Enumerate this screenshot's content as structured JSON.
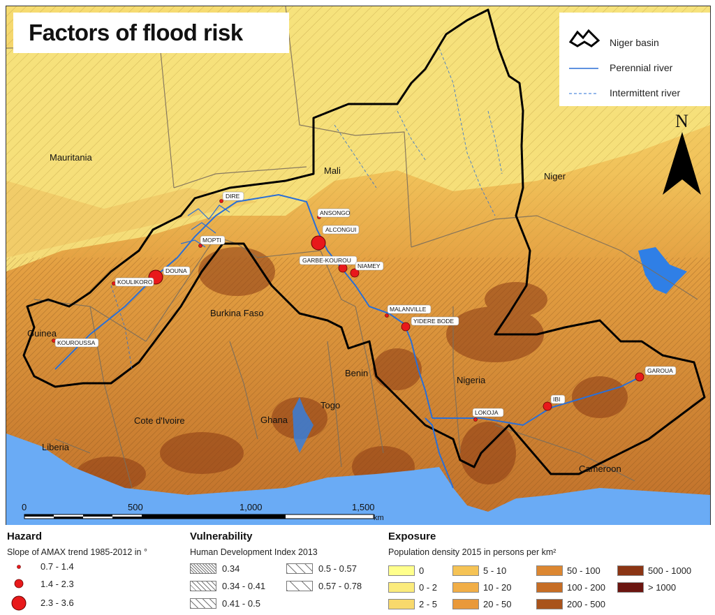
{
  "title": "Factors of flood risk",
  "legend": {
    "basin": "Niger basin",
    "perennial": "Perennial river",
    "intermittent": "Intermittent river"
  },
  "north": "N",
  "countries": [
    {
      "id": "mauritania",
      "name": "Mauritania"
    },
    {
      "id": "mali",
      "name": "Mali"
    },
    {
      "id": "niger",
      "name": "Niger"
    },
    {
      "id": "guinea",
      "name": "Guinea"
    },
    {
      "id": "burkina",
      "name": "Burkina Faso"
    },
    {
      "id": "benin",
      "name": "Benin"
    },
    {
      "id": "togo",
      "name": "Togo"
    },
    {
      "id": "ghana",
      "name": "Ghana"
    },
    {
      "id": "cote",
      "name": "Cote d'Ivoire"
    },
    {
      "id": "liberia",
      "name": "Liberia"
    },
    {
      "id": "nigeria",
      "name": "Nigeria"
    },
    {
      "id": "cameroon",
      "name": "Cameroon"
    }
  ],
  "stations": [
    {
      "name": "DIRE",
      "hazard_class": "0.7 - 1.4"
    },
    {
      "name": "ANSONGO",
      "hazard_class": "0.7 - 1.4"
    },
    {
      "name": "ALCONGUI",
      "hazard_class": "2.3 - 3.6"
    },
    {
      "name": "MOPTI",
      "hazard_class": "0.7 - 1.4"
    },
    {
      "name": "DOUNA",
      "hazard_class": "2.3 - 3.6"
    },
    {
      "name": "KOULIKORO",
      "hazard_class": "0.7 - 1.4"
    },
    {
      "name": "GARBE-KOUROU",
      "hazard_class": "1.4 - 2.3"
    },
    {
      "name": "NIAMEY",
      "hazard_class": "1.4 - 2.3"
    },
    {
      "name": "MALANVILLE",
      "hazard_class": "0.7 - 1.4"
    },
    {
      "name": "YIDERE BODE",
      "hazard_class": "1.4 - 2.3"
    },
    {
      "name": "KOUROUSSA",
      "hazard_class": "0.7 - 1.4"
    },
    {
      "name": "LOKOJA",
      "hazard_class": "0.7 - 1.4"
    },
    {
      "name": "IBI",
      "hazard_class": "1.4 - 2.3"
    },
    {
      "name": "GAROUA",
      "hazard_class": "1.4 - 2.3"
    }
  ],
  "scalebar": {
    "ticks": [
      "0",
      "500",
      "1,000",
      "1,500"
    ],
    "unit": "km"
  },
  "hazard": {
    "title": "Hazard",
    "subtitle": "Slope of AMAX trend 1985-2012 in °",
    "classes": [
      "0.7 - 1.4",
      "1.4 - 2.3",
      "2.3 - 3.6"
    ]
  },
  "vulnerability": {
    "title": "Vulnerability",
    "subtitle": "Human Development Index 2013",
    "classes": [
      "0.34",
      "0.34 - 0.41",
      "0.41 - 0.5",
      "0.5 - 0.57",
      "0.57 - 0.78"
    ]
  },
  "exposure": {
    "title": "Exposure",
    "subtitle": "Population density 2015 in persons per km²",
    "classes": [
      {
        "label": "0",
        "color": "#ffff8c"
      },
      {
        "label": "0 - 2",
        "color": "#fbeb7c"
      },
      {
        "label": "2 - 5",
        "color": "#f8d96c"
      },
      {
        "label": "5 - 10",
        "color": "#f5c355"
      },
      {
        "label": "10 - 20",
        "color": "#f1ae47"
      },
      {
        "label": "20 - 50",
        "color": "#e9993a"
      },
      {
        "label": "50 - 100",
        "color": "#dc8731"
      },
      {
        "label": "100 - 200",
        "color": "#c66d25"
      },
      {
        "label": "200 - 500",
        "color": "#a9531b"
      },
      {
        "label": "500 - 1000",
        "color": "#8b3514"
      },
      {
        "label": "> 1000",
        "color": "#6b1510"
      }
    ]
  },
  "colors": {
    "sea": "#6aabf5",
    "river": "#2a6fd6",
    "basin_line": "#000000",
    "station": "#e8191b"
  }
}
